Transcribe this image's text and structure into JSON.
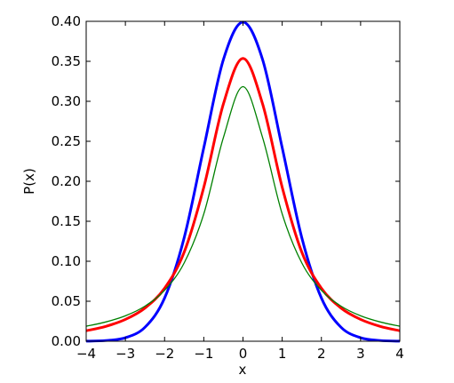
{
  "chart_data": {
    "type": "line",
    "title": "",
    "xlabel": "x",
    "ylabel": "P(x)",
    "xlim": [
      -4,
      4
    ],
    "ylim": [
      0,
      0.4
    ],
    "x_ticks": [
      "−4",
      "−3",
      "−2",
      "−1",
      "0",
      "1",
      "2",
      "3",
      "4"
    ],
    "y_ticks": [
      "0.00",
      "0.05",
      "0.10",
      "0.15",
      "0.20",
      "0.25",
      "0.30",
      "0.35",
      "0.40"
    ],
    "grid": false,
    "legend": "none",
    "x": [
      -4,
      -3.5,
      -3,
      -2.5,
      -2,
      -1.5,
      -1,
      -0.5,
      0,
      0.5,
      1,
      1.5,
      2,
      2.5,
      3,
      3.5,
      4
    ],
    "series": [
      {
        "color": "#0000ff",
        "width": "thick",
        "values": [
          0.0001,
          0.0009,
          0.0044,
          0.0175,
          0.054,
          0.1295,
          0.242,
          0.3521,
          0.399,
          0.3521,
          0.242,
          0.1295,
          0.054,
          0.0175,
          0.0044,
          0.0009,
          0.0001
        ]
      },
      {
        "color": "#ff0000",
        "width": "thick",
        "values": [
          0.0131,
          0.0186,
          0.0273,
          0.0415,
          0.0663,
          0.1114,
          0.1925,
          0.2967,
          0.3536,
          0.2967,
          0.1925,
          0.1114,
          0.0663,
          0.0415,
          0.0273,
          0.0186,
          0.0131
        ]
      },
      {
        "color": "#008000",
        "width": "thin",
        "values": [
          0.0187,
          0.0241,
          0.0318,
          0.0439,
          0.0637,
          0.0979,
          0.1592,
          0.2546,
          0.3183,
          0.2546,
          0.1592,
          0.0979,
          0.0637,
          0.0439,
          0.0318,
          0.0241,
          0.0187
        ]
      }
    ]
  }
}
